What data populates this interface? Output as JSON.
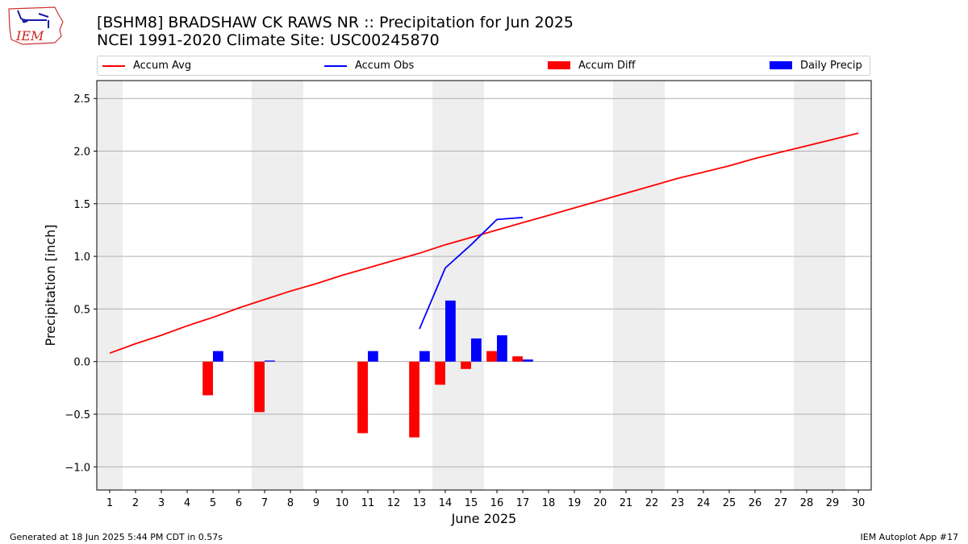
{
  "header": {
    "logo_text": "IEM",
    "title_line1": "[BSHM8] BRADSHAW CK RAWS NR :: Precipitation for Jun 2025",
    "title_line2": "NCEI 1991-2020 Climate Site: USC00245870"
  },
  "legend": {
    "items": [
      {
        "label": "Accum Avg",
        "color": "#ff0000",
        "kind": "line"
      },
      {
        "label": "Accum Obs",
        "color": "#0000ff",
        "kind": "line"
      },
      {
        "label": "Accum Diff",
        "color": "#ff0000",
        "kind": "bar"
      },
      {
        "label": "Daily Precip",
        "color": "#0000ff",
        "kind": "bar"
      }
    ]
  },
  "footer": {
    "left": "Generated at 18 Jun 2025 5:44 PM CDT in 0.57s",
    "right": "IEM Autoplot App #17"
  },
  "chart_data": {
    "type": "bar",
    "title": "[BSHM8] BRADSHAW CK RAWS NR :: Precipitation for Jun 2025",
    "subtitle": "NCEI 1991-2020 Climate Site: USC00245870",
    "xlabel": "June 2025",
    "ylabel": "Precipitation [inch]",
    "xlim": [
      0.5,
      30.5
    ],
    "ylim": [
      -1.22,
      2.67
    ],
    "yticks": [
      -1.0,
      -0.5,
      0.0,
      0.5,
      1.0,
      1.5,
      2.0,
      2.5
    ],
    "ytick_labels": [
      "−1.0",
      "−0.5",
      "0.0",
      "0.5",
      "1.0",
      "1.5",
      "2.0",
      "2.5"
    ],
    "x": [
      1,
      2,
      3,
      4,
      5,
      6,
      7,
      8,
      9,
      10,
      11,
      12,
      13,
      14,
      15,
      16,
      17,
      18,
      19,
      20,
      21,
      22,
      23,
      24,
      25,
      26,
      27,
      28,
      29,
      30
    ],
    "grid": "horizontal",
    "legend_position": "top",
    "weekend_shading_days": [
      1,
      7,
      8,
      14,
      15,
      21,
      22,
      28,
      29
    ],
    "series": [
      {
        "name": "Accum Avg",
        "type": "line",
        "color": "#ff0000",
        "x": [
          1,
          2,
          3,
          4,
          5,
          6,
          7,
          8,
          9,
          10,
          11,
          12,
          13,
          14,
          15,
          16,
          17,
          18,
          19,
          20,
          21,
          22,
          23,
          24,
          25,
          26,
          27,
          28,
          29,
          30
        ],
        "values": [
          0.08,
          0.17,
          0.25,
          0.34,
          0.42,
          0.51,
          0.59,
          0.67,
          0.74,
          0.82,
          0.89,
          0.96,
          1.03,
          1.11,
          1.18,
          1.25,
          1.32,
          1.39,
          1.46,
          1.53,
          1.6,
          1.67,
          1.74,
          1.8,
          1.86,
          1.93,
          1.99,
          2.05,
          2.11,
          2.17
        ]
      },
      {
        "name": "Accum Obs",
        "type": "line",
        "color": "#0000ff",
        "x": [
          13,
          14,
          15,
          16,
          17
        ],
        "values": [
          0.31,
          0.89,
          1.11,
          1.35,
          1.37
        ]
      },
      {
        "name": "Accum Diff",
        "type": "bar",
        "color": "#ff0000",
        "x": [
          5,
          7,
          11,
          13,
          14,
          15,
          16,
          17
        ],
        "values": [
          -0.32,
          -0.48,
          -0.68,
          -0.72,
          -0.22,
          -0.07,
          0.1,
          0.05
        ]
      },
      {
        "name": "Daily Precip",
        "type": "bar",
        "color": "#0000ff",
        "x": [
          5,
          7,
          11,
          13,
          14,
          15,
          16,
          17
        ],
        "values": [
          0.1,
          0.01,
          0.1,
          0.1,
          0.58,
          0.22,
          0.25,
          0.02
        ]
      }
    ]
  }
}
